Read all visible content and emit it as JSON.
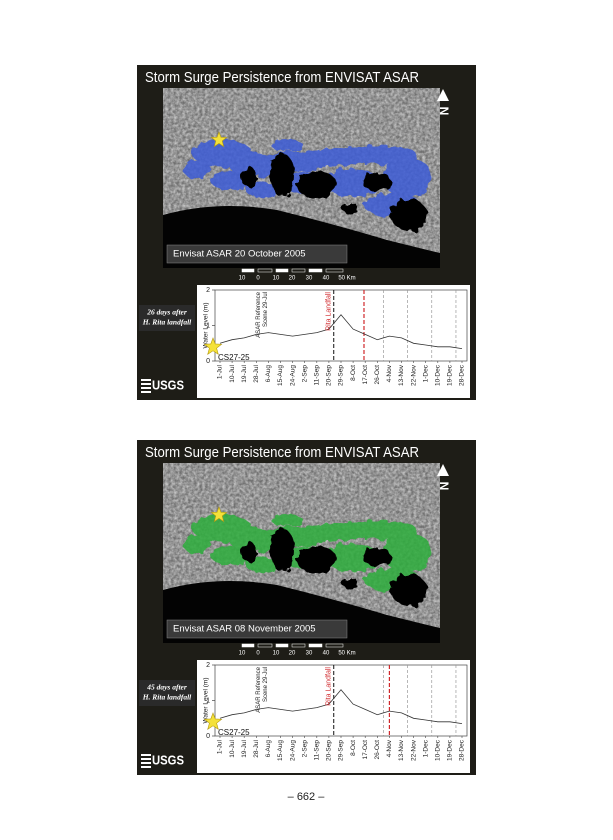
{
  "page_number": "– 662 –",
  "slides": [
    {
      "title": "Storm Surge Persistence from ENVISAT ASAR",
      "caption": "Envisat ASAR 20 October 2005",
      "flood_color": "#3d5bd6",
      "north": "N",
      "scale_labels": [
        "10",
        "0",
        "10",
        "20",
        "30",
        "40",
        "50 Km"
      ],
      "note": [
        "26 days after",
        "H. Rita landfall"
      ],
      "logo": "USGS",
      "chart": {
        "type": "line",
        "y_label": "Water Level (m)",
        "categories": [
          "1-Jul",
          "10-Jul",
          "19-Jul",
          "28-Jul",
          "6-Aug",
          "15-Aug",
          "24-Aug",
          "2-Sep",
          "11-Sep",
          "20-Sep",
          "29-Sep",
          "8-Oct",
          "17-Oct",
          "26-Oct",
          "4-Nov",
          "13-Nov",
          "22-Nov",
          "1-Dec",
          "10-Dec",
          "19-Dec",
          "28-Dec"
        ],
        "values": [
          0.5,
          0.6,
          0.65,
          0.75,
          0.8,
          0.75,
          0.7,
          0.75,
          0.8,
          0.9,
          1.3,
          0.9,
          0.75,
          0.6,
          0.7,
          0.65,
          0.5,
          0.45,
          0.4,
          0.4,
          0.35
        ],
        "color": "#333333",
        "ylim": [
          0,
          2
        ],
        "yticks": [
          0,
          1,
          2
        ],
        "reference_label": [
          "ASAR Reference",
          "Scene 29-Jul"
        ],
        "landfall_label": "Rita Landfall",
        "station": "CS27-25"
      }
    },
    {
      "title": "Storm Surge Persistence from ENVISAT ASAR",
      "caption": "Envisat ASAR 08 November 2005",
      "flood_color": "#2fae3c",
      "north": "N",
      "scale_labels": [
        "10",
        "0",
        "10",
        "20",
        "30",
        "40",
        "50 Km"
      ],
      "note": [
        "45 days after",
        "H. Rita landfall"
      ],
      "logo": "USGS",
      "chart": {
        "type": "line",
        "y_label": "Water Level (m)",
        "categories": [
          "1-Jul",
          "10-Jul",
          "19-Jul",
          "28-Jul",
          "6-Aug",
          "15-Aug",
          "24-Aug",
          "2-Sep",
          "11-Sep",
          "20-Sep",
          "29-Sep",
          "8-Oct",
          "17-Oct",
          "26-Oct",
          "4-Nov",
          "13-Nov",
          "22-Nov",
          "1-Dec",
          "10-Dec",
          "19-Dec",
          "28-Dec"
        ],
        "values": [
          0.5,
          0.6,
          0.65,
          0.75,
          0.8,
          0.75,
          0.7,
          0.75,
          0.8,
          0.9,
          1.3,
          0.9,
          0.75,
          0.6,
          0.7,
          0.65,
          0.5,
          0.45,
          0.4,
          0.4,
          0.35
        ],
        "color": "#333333",
        "ylim": [
          0,
          2
        ],
        "yticks": [
          0,
          1,
          2
        ],
        "reference_label": [
          "ASAR Reference",
          "Scene 29-Jul"
        ],
        "landfall_label": "Rita Landfall",
        "station": "CS27-25"
      }
    }
  ]
}
